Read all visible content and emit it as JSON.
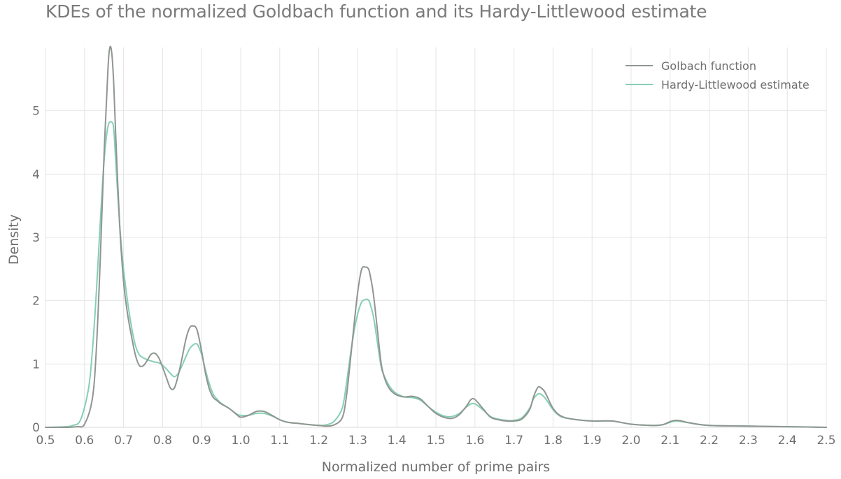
{
  "chart_data": {
    "type": "line",
    "title": "KDEs of the normalized Goldbach function and its Hardy-Littlewood estimate",
    "xlabel": "Normalized number of prime pairs",
    "ylabel": "Density",
    "xlim": [
      0.5,
      2.5
    ],
    "ylim": [
      0,
      6
    ],
    "x_ticks": [
      "0.5",
      "0.6",
      "0.7",
      "0.8",
      "0.9",
      "1.0",
      "1.1",
      "1.2",
      "1.3",
      "1.4",
      "1.5",
      "1.6",
      "1.7",
      "1.8",
      "1.9",
      "2.0",
      "2.1",
      "2.2",
      "2.3",
      "2.4",
      "2.5"
    ],
    "y_ticks": [
      "0",
      "1",
      "2",
      "3",
      "4",
      "5"
    ],
    "grid": true,
    "legend_position": "top-right",
    "series": [
      {
        "name": "Golbach function",
        "color": "#8f9690",
        "x": [
          0.5,
          0.55,
          0.58,
          0.6,
          0.62,
          0.63,
          0.64,
          0.65,
          0.66,
          0.665,
          0.67,
          0.675,
          0.68,
          0.69,
          0.7,
          0.71,
          0.72,
          0.73,
          0.74,
          0.75,
          0.76,
          0.77,
          0.78,
          0.79,
          0.8,
          0.81,
          0.82,
          0.83,
          0.84,
          0.85,
          0.86,
          0.87,
          0.88,
          0.885,
          0.89,
          0.9,
          0.91,
          0.92,
          0.93,
          0.94,
          0.95,
          0.97,
          0.99,
          1.0,
          1.02,
          1.04,
          1.06,
          1.08,
          1.1,
          1.12,
          1.15,
          1.18,
          1.2,
          1.22,
          1.24,
          1.26,
          1.27,
          1.28,
          1.29,
          1.3,
          1.31,
          1.32,
          1.325,
          1.33,
          1.34,
          1.35,
          1.36,
          1.37,
          1.38,
          1.39,
          1.4,
          1.42,
          1.44,
          1.46,
          1.48,
          1.5,
          1.52,
          1.54,
          1.56,
          1.58,
          1.59,
          1.6,
          1.62,
          1.64,
          1.66,
          1.68,
          1.7,
          1.72,
          1.74,
          1.75,
          1.76,
          1.765,
          1.77,
          1.78,
          1.8,
          1.82,
          1.85,
          1.9,
          1.95,
          2.0,
          2.05,
          2.08,
          2.1,
          2.115,
          2.13,
          2.15,
          2.2,
          2.3,
          2.4,
          2.5
        ],
        "y": [
          0,
          0,
          0.01,
          0.05,
          0.45,
          1.2,
          2.6,
          4.3,
          5.65,
          6.0,
          5.9,
          5.4,
          4.6,
          3.2,
          2.3,
          1.8,
          1.45,
          1.15,
          0.98,
          0.97,
          1.05,
          1.15,
          1.17,
          1.1,
          0.95,
          0.78,
          0.62,
          0.62,
          0.82,
          1.1,
          1.4,
          1.58,
          1.6,
          1.58,
          1.5,
          1.2,
          0.85,
          0.6,
          0.47,
          0.42,
          0.37,
          0.3,
          0.2,
          0.16,
          0.19,
          0.25,
          0.25,
          0.19,
          0.12,
          0.08,
          0.06,
          0.04,
          0.03,
          0.02,
          0.04,
          0.15,
          0.45,
          1.0,
          1.6,
          2.15,
          2.5,
          2.53,
          2.52,
          2.45,
          2.1,
          1.55,
          1.0,
          0.75,
          0.62,
          0.55,
          0.51,
          0.48,
          0.49,
          0.45,
          0.33,
          0.22,
          0.16,
          0.14,
          0.2,
          0.35,
          0.44,
          0.44,
          0.3,
          0.16,
          0.12,
          0.1,
          0.1,
          0.13,
          0.28,
          0.48,
          0.62,
          0.64,
          0.62,
          0.55,
          0.3,
          0.18,
          0.13,
          0.1,
          0.1,
          0.05,
          0.03,
          0.04,
          0.09,
          0.11,
          0.1,
          0.07,
          0.03,
          0.02,
          0.01,
          0.0
        ]
      },
      {
        "name": "Hardy-Littlewood estimate",
        "color": "#86cfb4",
        "x": [
          0.5,
          0.55,
          0.57,
          0.59,
          0.61,
          0.62,
          0.63,
          0.64,
          0.65,
          0.66,
          0.67,
          0.675,
          0.68,
          0.69,
          0.7,
          0.71,
          0.72,
          0.73,
          0.74,
          0.75,
          0.76,
          0.77,
          0.78,
          0.79,
          0.8,
          0.81,
          0.82,
          0.83,
          0.84,
          0.85,
          0.86,
          0.87,
          0.88,
          0.885,
          0.89,
          0.9,
          0.91,
          0.92,
          0.93,
          0.94,
          0.95,
          0.97,
          0.99,
          1.0,
          1.02,
          1.04,
          1.06,
          1.08,
          1.1,
          1.12,
          1.15,
          1.18,
          1.2,
          1.22,
          1.24,
          1.26,
          1.27,
          1.28,
          1.29,
          1.3,
          1.31,
          1.32,
          1.325,
          1.33,
          1.34,
          1.35,
          1.36,
          1.37,
          1.38,
          1.39,
          1.4,
          1.42,
          1.44,
          1.46,
          1.48,
          1.5,
          1.52,
          1.54,
          1.56,
          1.58,
          1.59,
          1.6,
          1.62,
          1.64,
          1.66,
          1.68,
          1.7,
          1.72,
          1.74,
          1.75,
          1.76,
          1.765,
          1.77,
          1.78,
          1.8,
          1.82,
          1.85,
          1.9,
          1.95,
          2.0,
          2.05,
          2.08,
          2.1,
          2.115,
          2.13,
          2.15,
          2.2,
          2.3,
          2.4,
          2.5
        ],
        "y": [
          0,
          0.01,
          0.03,
          0.12,
          0.6,
          1.2,
          2.1,
          3.2,
          4.2,
          4.75,
          4.82,
          4.7,
          4.2,
          3.2,
          2.5,
          2.0,
          1.6,
          1.3,
          1.15,
          1.1,
          1.07,
          1.05,
          1.03,
          1.02,
          0.98,
          0.92,
          0.85,
          0.8,
          0.85,
          0.98,
          1.12,
          1.25,
          1.31,
          1.32,
          1.3,
          1.15,
          0.9,
          0.68,
          0.52,
          0.44,
          0.38,
          0.3,
          0.21,
          0.19,
          0.19,
          0.22,
          0.22,
          0.18,
          0.12,
          0.08,
          0.06,
          0.04,
          0.03,
          0.04,
          0.1,
          0.3,
          0.65,
          1.1,
          1.5,
          1.8,
          1.98,
          2.02,
          2.02,
          1.98,
          1.75,
          1.35,
          0.95,
          0.78,
          0.66,
          0.58,
          0.53,
          0.48,
          0.47,
          0.43,
          0.33,
          0.24,
          0.18,
          0.17,
          0.22,
          0.33,
          0.37,
          0.37,
          0.28,
          0.17,
          0.13,
          0.11,
          0.11,
          0.15,
          0.3,
          0.45,
          0.52,
          0.53,
          0.52,
          0.46,
          0.28,
          0.17,
          0.13,
          0.1,
          0.1,
          0.05,
          0.03,
          0.04,
          0.08,
          0.1,
          0.09,
          0.07,
          0.03,
          0.02,
          0.01,
          0.0
        ]
      }
    ]
  }
}
